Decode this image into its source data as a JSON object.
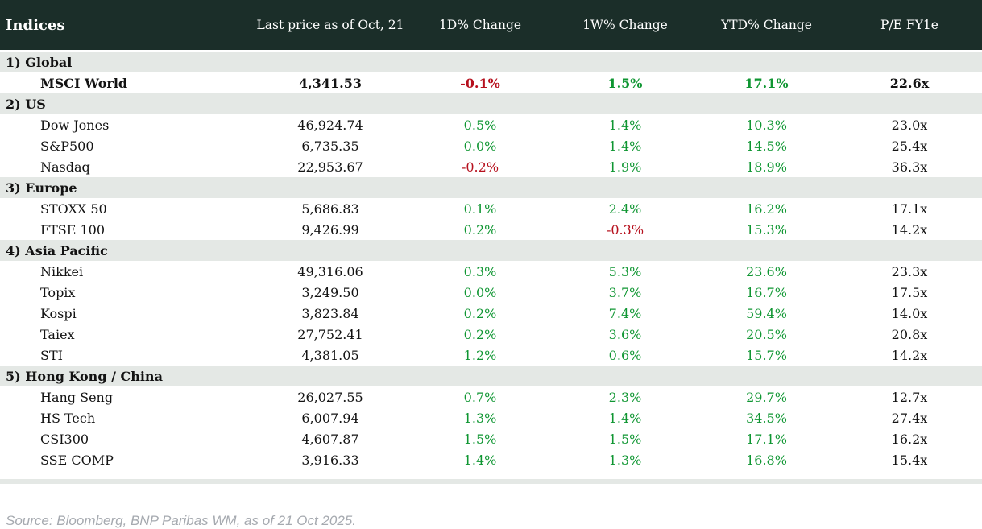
{
  "chart_data": {
    "type": "table",
    "title": "Indices",
    "columns": [
      "Indices",
      "Last price as of Oct, 21",
      "1D% Change",
      "1W% Change",
      "YTD% Change",
      "P/E FY1e"
    ],
    "sections": [
      {
        "label": "1) Global",
        "rows": [
          {
            "name": "MSCI World",
            "last": "4,341.53",
            "d1": "-0.1%",
            "w1": "1.5%",
            "ytd": "17.1%",
            "pe": "22.6x",
            "bold": true
          }
        ]
      },
      {
        "label": "2) US",
        "rows": [
          {
            "name": "Dow Jones",
            "last": "46,924.74",
            "d1": "0.5%",
            "w1": "1.4%",
            "ytd": "10.3%",
            "pe": "23.0x"
          },
          {
            "name": "S&P500",
            "last": "6,735.35",
            "d1": "0.0%",
            "w1": "1.4%",
            "ytd": "14.5%",
            "pe": "25.4x"
          },
          {
            "name": "Nasdaq",
            "last": "22,953.67",
            "d1": "-0.2%",
            "w1": "1.9%",
            "ytd": "18.9%",
            "pe": "36.3x"
          }
        ]
      },
      {
        "label": "3) Europe",
        "rows": [
          {
            "name": "STOXX 50",
            "last": "5,686.83",
            "d1": "0.1%",
            "w1": "2.4%",
            "ytd": "16.2%",
            "pe": "17.1x"
          },
          {
            "name": "FTSE 100",
            "last": "9,426.99",
            "d1": "0.2%",
            "w1": "-0.3%",
            "ytd": "15.3%",
            "pe": "14.2x"
          }
        ]
      },
      {
        "label": "4) Asia Pacific",
        "rows": [
          {
            "name": "Nikkei",
            "last": "49,316.06",
            "d1": "0.3%",
            "w1": "5.3%",
            "ytd": "23.6%",
            "pe": "23.3x"
          },
          {
            "name": "Topix",
            "last": "3,249.50",
            "d1": "0.0%",
            "w1": "3.7%",
            "ytd": "16.7%",
            "pe": "17.5x"
          },
          {
            "name": "Kospi",
            "last": "3,823.84",
            "d1": "0.2%",
            "w1": "7.4%",
            "ytd": "59.4%",
            "pe": "14.0x"
          },
          {
            "name": "Taiex",
            "last": "27,752.41",
            "d1": "0.2%",
            "w1": "3.6%",
            "ytd": "20.5%",
            "pe": "20.8x"
          },
          {
            "name": "STI",
            "last": "4,381.05",
            "d1": "1.2%",
            "w1": "0.6%",
            "ytd": "15.7%",
            "pe": "14.2x"
          }
        ]
      },
      {
        "label": "5) Hong Kong / China",
        "rows": [
          {
            "name": "Hang Seng",
            "last": "26,027.55",
            "d1": "0.7%",
            "w1": "2.3%",
            "ytd": "29.7%",
            "pe": "12.7x"
          },
          {
            "name": "HS Tech",
            "last": "6,007.94",
            "d1": "1.3%",
            "w1": "1.4%",
            "ytd": "34.5%",
            "pe": "27.4x"
          },
          {
            "name": "CSI300",
            "last": "4,607.87",
            "d1": "1.5%",
            "w1": "1.5%",
            "ytd": "17.1%",
            "pe": "16.2x"
          },
          {
            "name": "SSE COMP",
            "last": "3,916.33",
            "d1": "1.4%",
            "w1": "1.3%",
            "ytd": "16.8%",
            "pe": "15.4x"
          }
        ]
      }
    ],
    "source": "Source: Bloomberg, BNP Paribas WM, as of 21 Oct 2025.",
    "colors": {
      "header_bg": "#1b2e29",
      "section_band_bg": "#e4e8e5",
      "positive": "#0f9632",
      "negative": "#b6101d",
      "text": "#131313",
      "source_text": "#a6aab0"
    }
  }
}
